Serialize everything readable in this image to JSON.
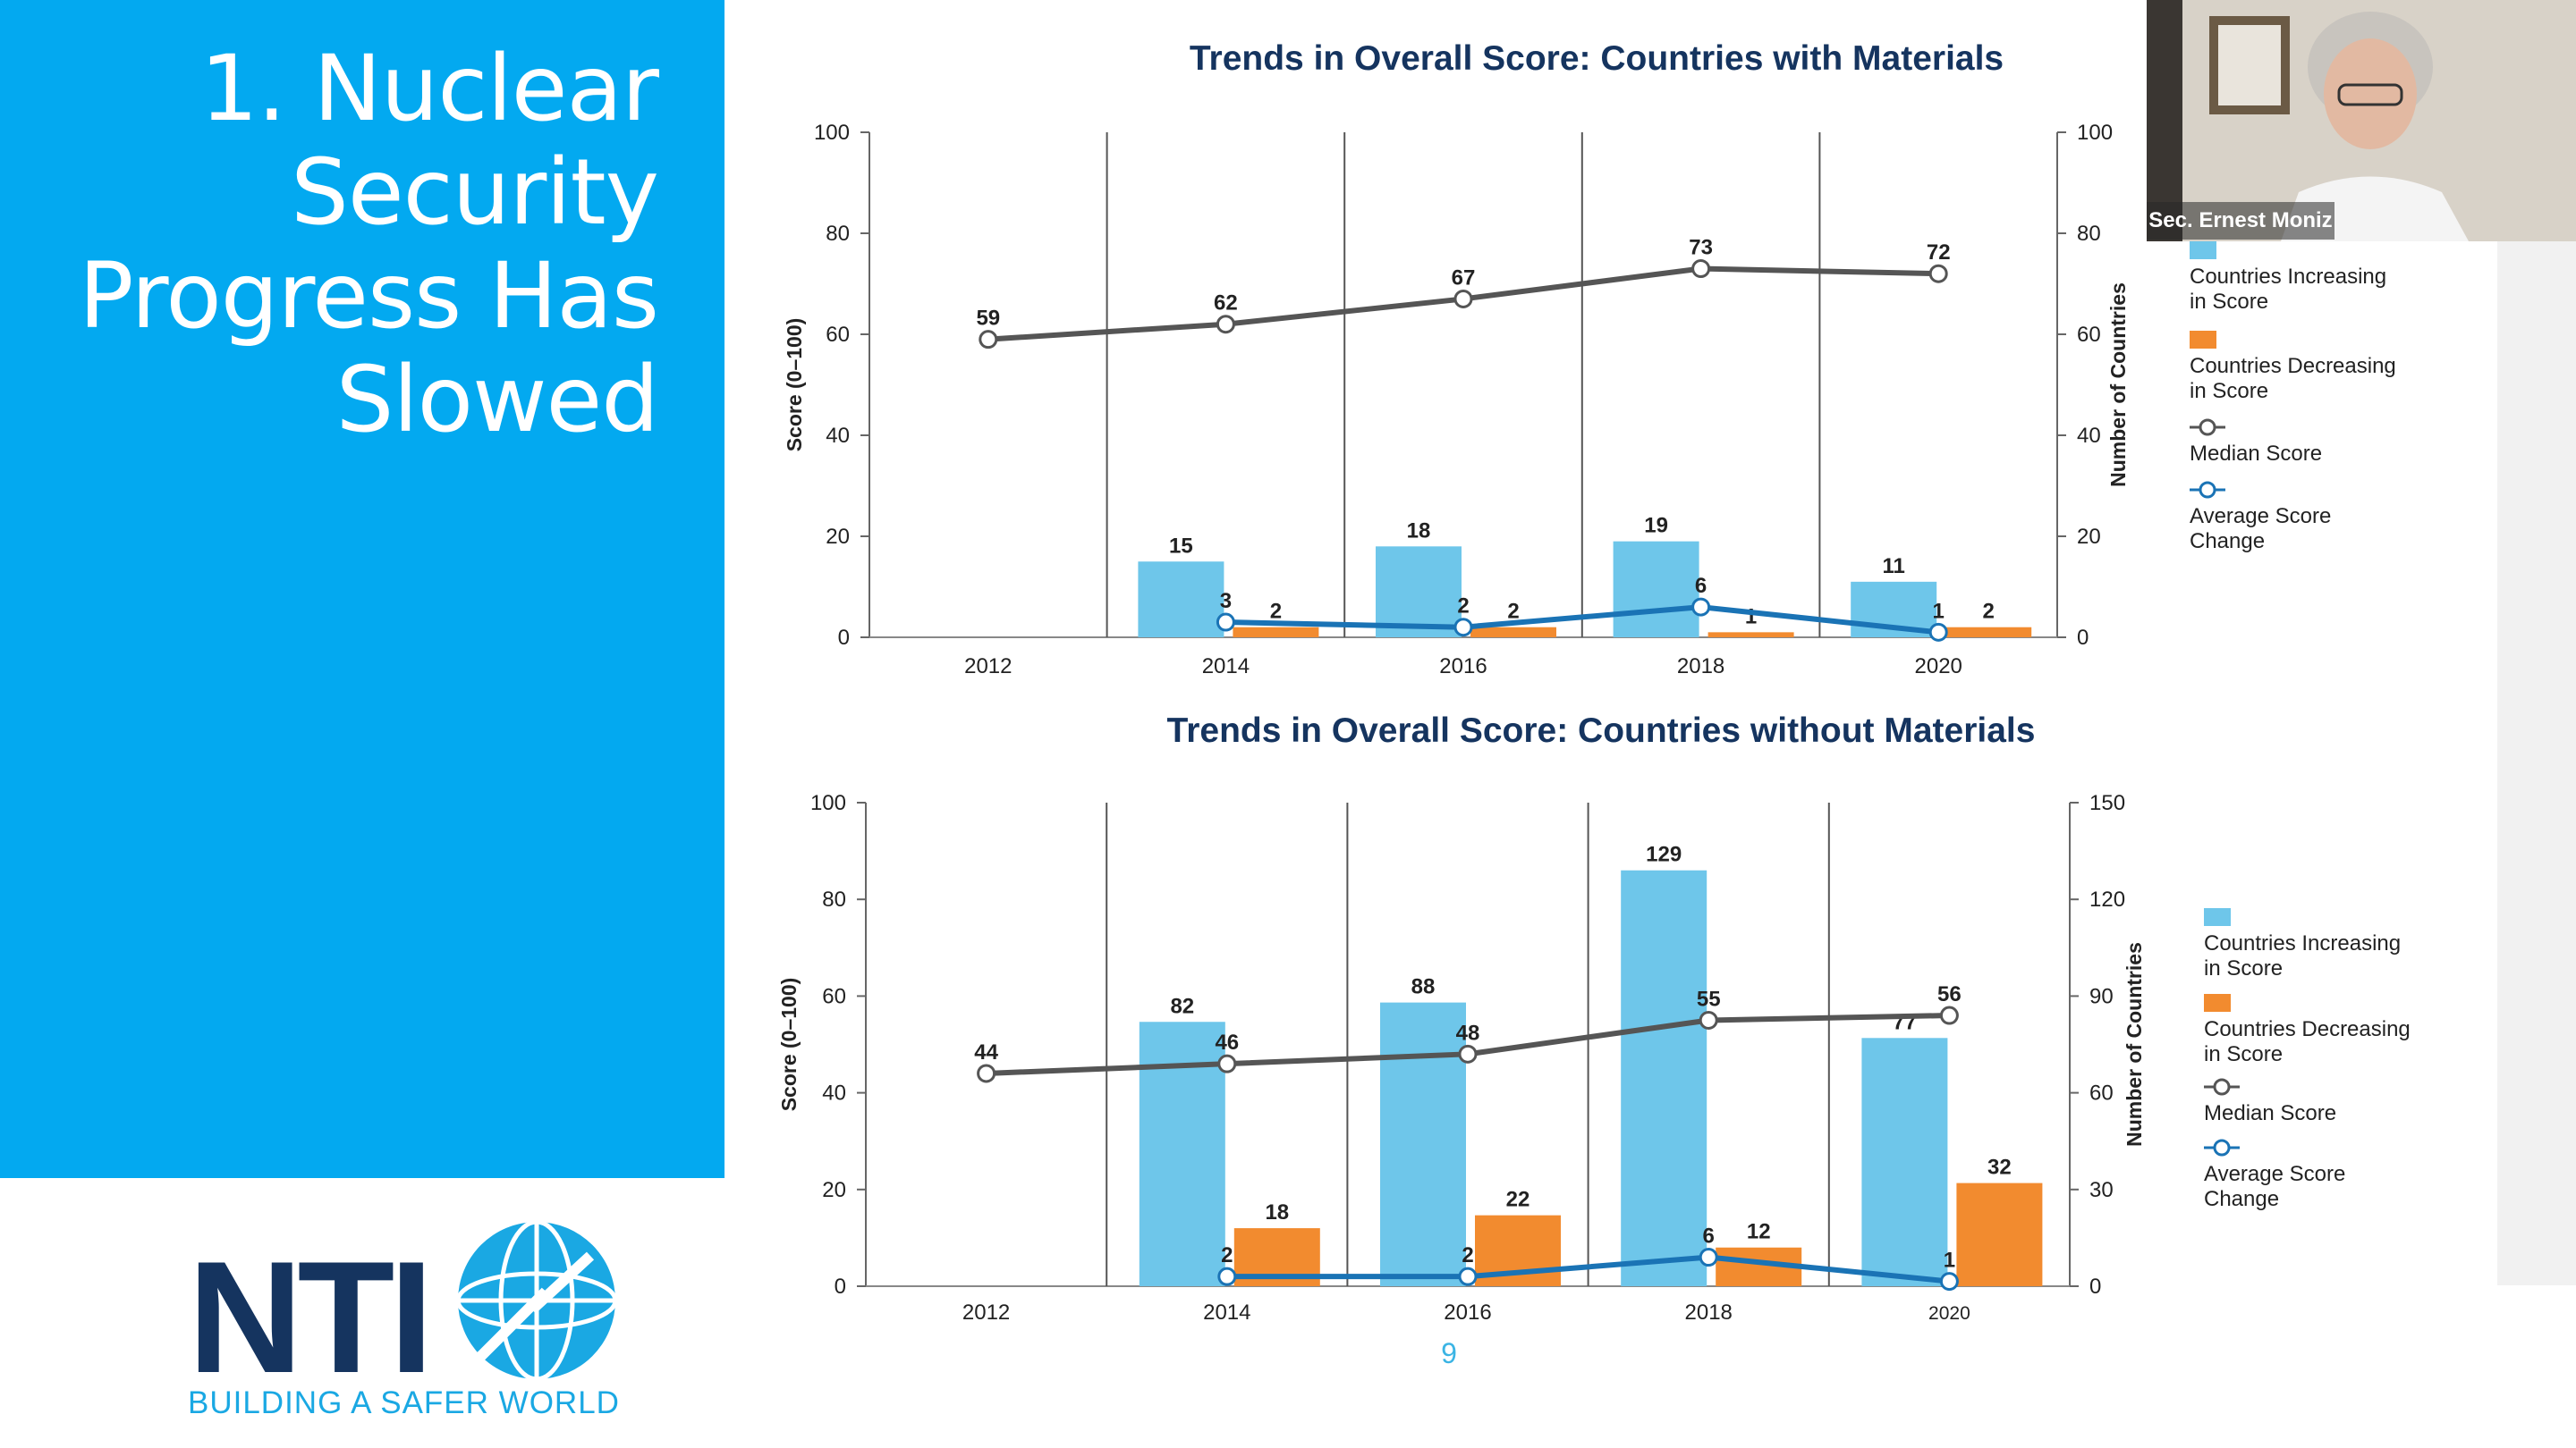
{
  "slide": {
    "title_lines": [
      "1. Nuclear",
      "Security",
      "Progress Has",
      "Slowed"
    ],
    "page_number": "9",
    "logo_text": "NTI",
    "logo_tagline": "BUILDING A SAFER WORLD",
    "presenter_label": "Sec. Ernest Moniz"
  },
  "colors": {
    "panel": "#03a9f0",
    "increase": "#6ec6ea",
    "decrease": "#f28b2f",
    "median": "#555555",
    "average": "#1a73b5"
  },
  "legend": [
    {
      "label1": "Countries Increasing",
      "label2": "in Score"
    },
    {
      "label1": "Countries Decreasing",
      "label2": "in Score"
    },
    {
      "label1": "Median Score",
      "label2": ""
    },
    {
      "label1": "Average Score",
      "label2": "Change"
    }
  ],
  "chart_data": [
    {
      "type": "bar",
      "title": "Trends in Overall Score: Countries with Materials",
      "ylabel": "Score (0–100)",
      "y2label": "Number of Countries",
      "ylim": [
        0,
        100
      ],
      "y2lim": [
        0,
        100
      ],
      "yticks": [
        0,
        20,
        40,
        60,
        80,
        100
      ],
      "y2ticks": [
        0,
        20,
        40,
        60,
        80,
        100
      ],
      "categories": [
        "2012",
        "2014",
        "2016",
        "2018",
        "2020"
      ],
      "series": [
        {
          "name": "Countries Increasing in Score",
          "kind": "bar",
          "axis": "y2",
          "values": [
            null,
            15,
            18,
            19,
            11
          ]
        },
        {
          "name": "Countries Decreasing in Score",
          "kind": "bar",
          "axis": "y2",
          "values": [
            null,
            2,
            2,
            1,
            2
          ]
        },
        {
          "name": "Median Score",
          "kind": "line",
          "axis": "y",
          "values": [
            59,
            62,
            67,
            73,
            72
          ]
        },
        {
          "name": "Average Score Change",
          "kind": "line",
          "axis": "y",
          "values": [
            null,
            3,
            2,
            6,
            1
          ]
        }
      ]
    },
    {
      "type": "bar",
      "title": "Trends in Overall Score: Countries without Materials",
      "ylabel": "Score (0–100)",
      "y2label": "Number of Countries",
      "ylim": [
        0,
        100
      ],
      "y2lim": [
        0,
        150
      ],
      "yticks": [
        0,
        20,
        40,
        60,
        80,
        100
      ],
      "y2ticks": [
        0,
        30,
        60,
        90,
        120,
        150
      ],
      "categories": [
        "2012",
        "2014",
        "2016",
        "2018",
        "2020"
      ],
      "series": [
        {
          "name": "Countries Increasing in Score",
          "kind": "bar",
          "axis": "y2",
          "values": [
            null,
            82,
            88,
            129,
            77
          ]
        },
        {
          "name": "Countries Decreasing in Score",
          "kind": "bar",
          "axis": "y2",
          "values": [
            null,
            18,
            22,
            12,
            32
          ]
        },
        {
          "name": "Median Score",
          "kind": "line",
          "axis": "y",
          "values": [
            44,
            46,
            48,
            55,
            56
          ]
        },
        {
          "name": "Average Score Change",
          "kind": "line",
          "axis": "y",
          "values": [
            null,
            2,
            2,
            6,
            1
          ]
        }
      ]
    }
  ]
}
